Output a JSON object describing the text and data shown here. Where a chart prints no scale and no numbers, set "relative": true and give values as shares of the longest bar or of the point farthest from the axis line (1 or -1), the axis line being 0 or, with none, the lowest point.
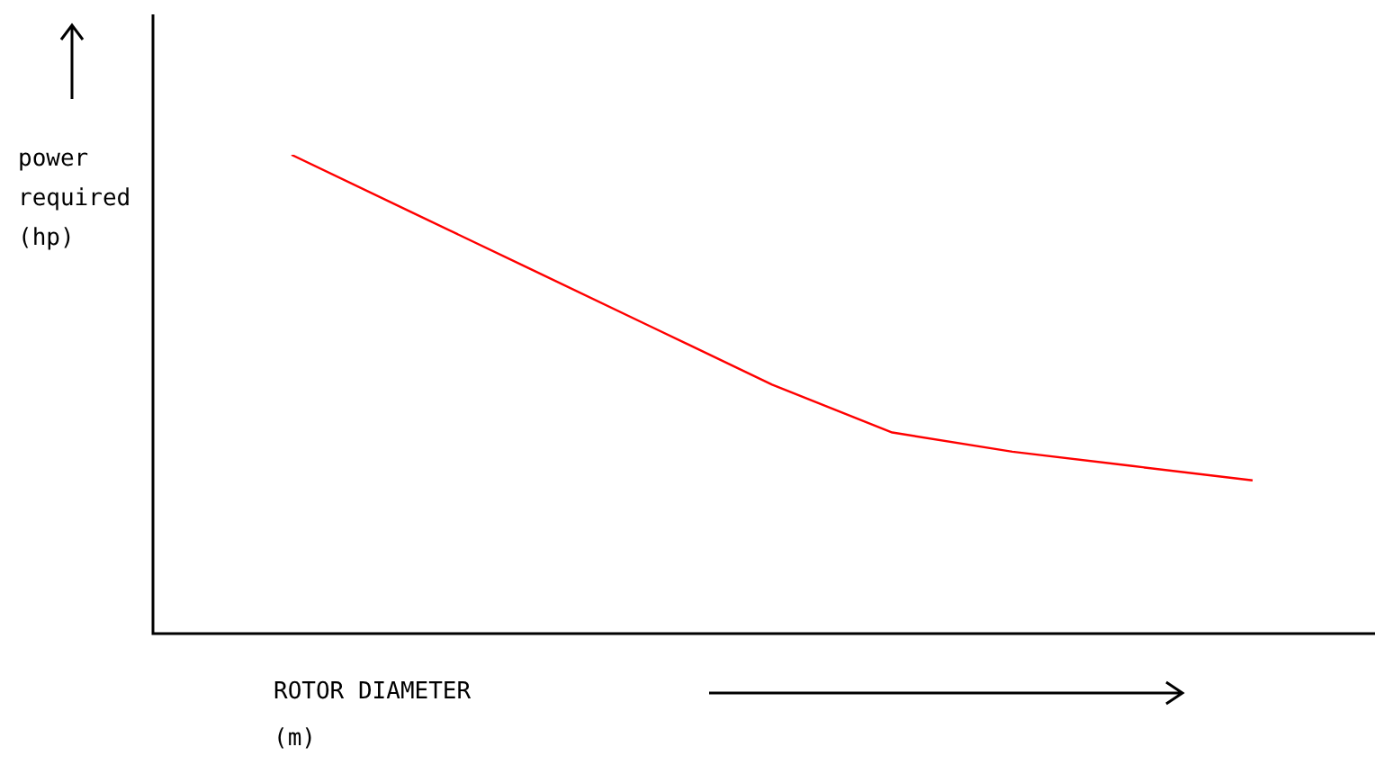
{
  "chart_data": {
    "type": "line",
    "relative": true,
    "xlabel": "ROTOR DIAMETER (m)",
    "ylabel": "power required (hp)",
    "categories": [
      null,
      null,
      null,
      null,
      null,
      null,
      null,
      null,
      null
    ],
    "series": [
      {
        "color": "#ff0000",
        "values": [
          1,
          0.88,
          0.76,
          0.64,
          0.52,
          0.42,
          0.38,
          0.35,
          0.32
        ]
      }
    ],
    "marker": "none",
    "line_style": "solid",
    "legend": false
  }
}
